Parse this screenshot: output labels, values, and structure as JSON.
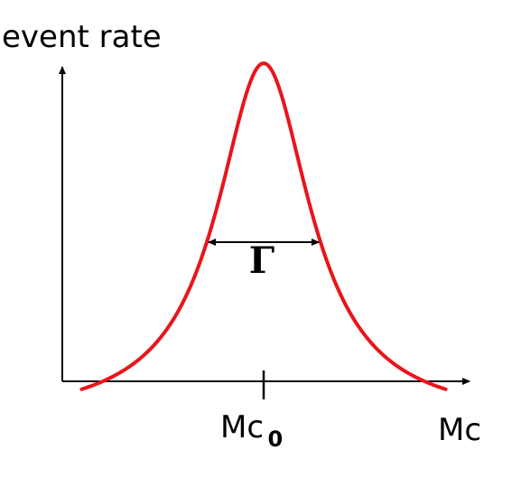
{
  "chart_data": {
    "type": "line",
    "ylabel": "event rate",
    "xlabel": "Mc",
    "x_tick": {
      "base": "Mc",
      "subscript": "0"
    },
    "width_label": "Γ",
    "curve_shape": "breit-wigner",
    "series": [
      {
        "color": "#e8151b",
        "peak_x": 0,
        "half_width": 1,
        "x_range": [
          -3.2,
          3.2
        ]
      }
    ],
    "grid": false,
    "colors": {
      "curve": "#e8151b",
      "axes": "#000000"
    }
  }
}
